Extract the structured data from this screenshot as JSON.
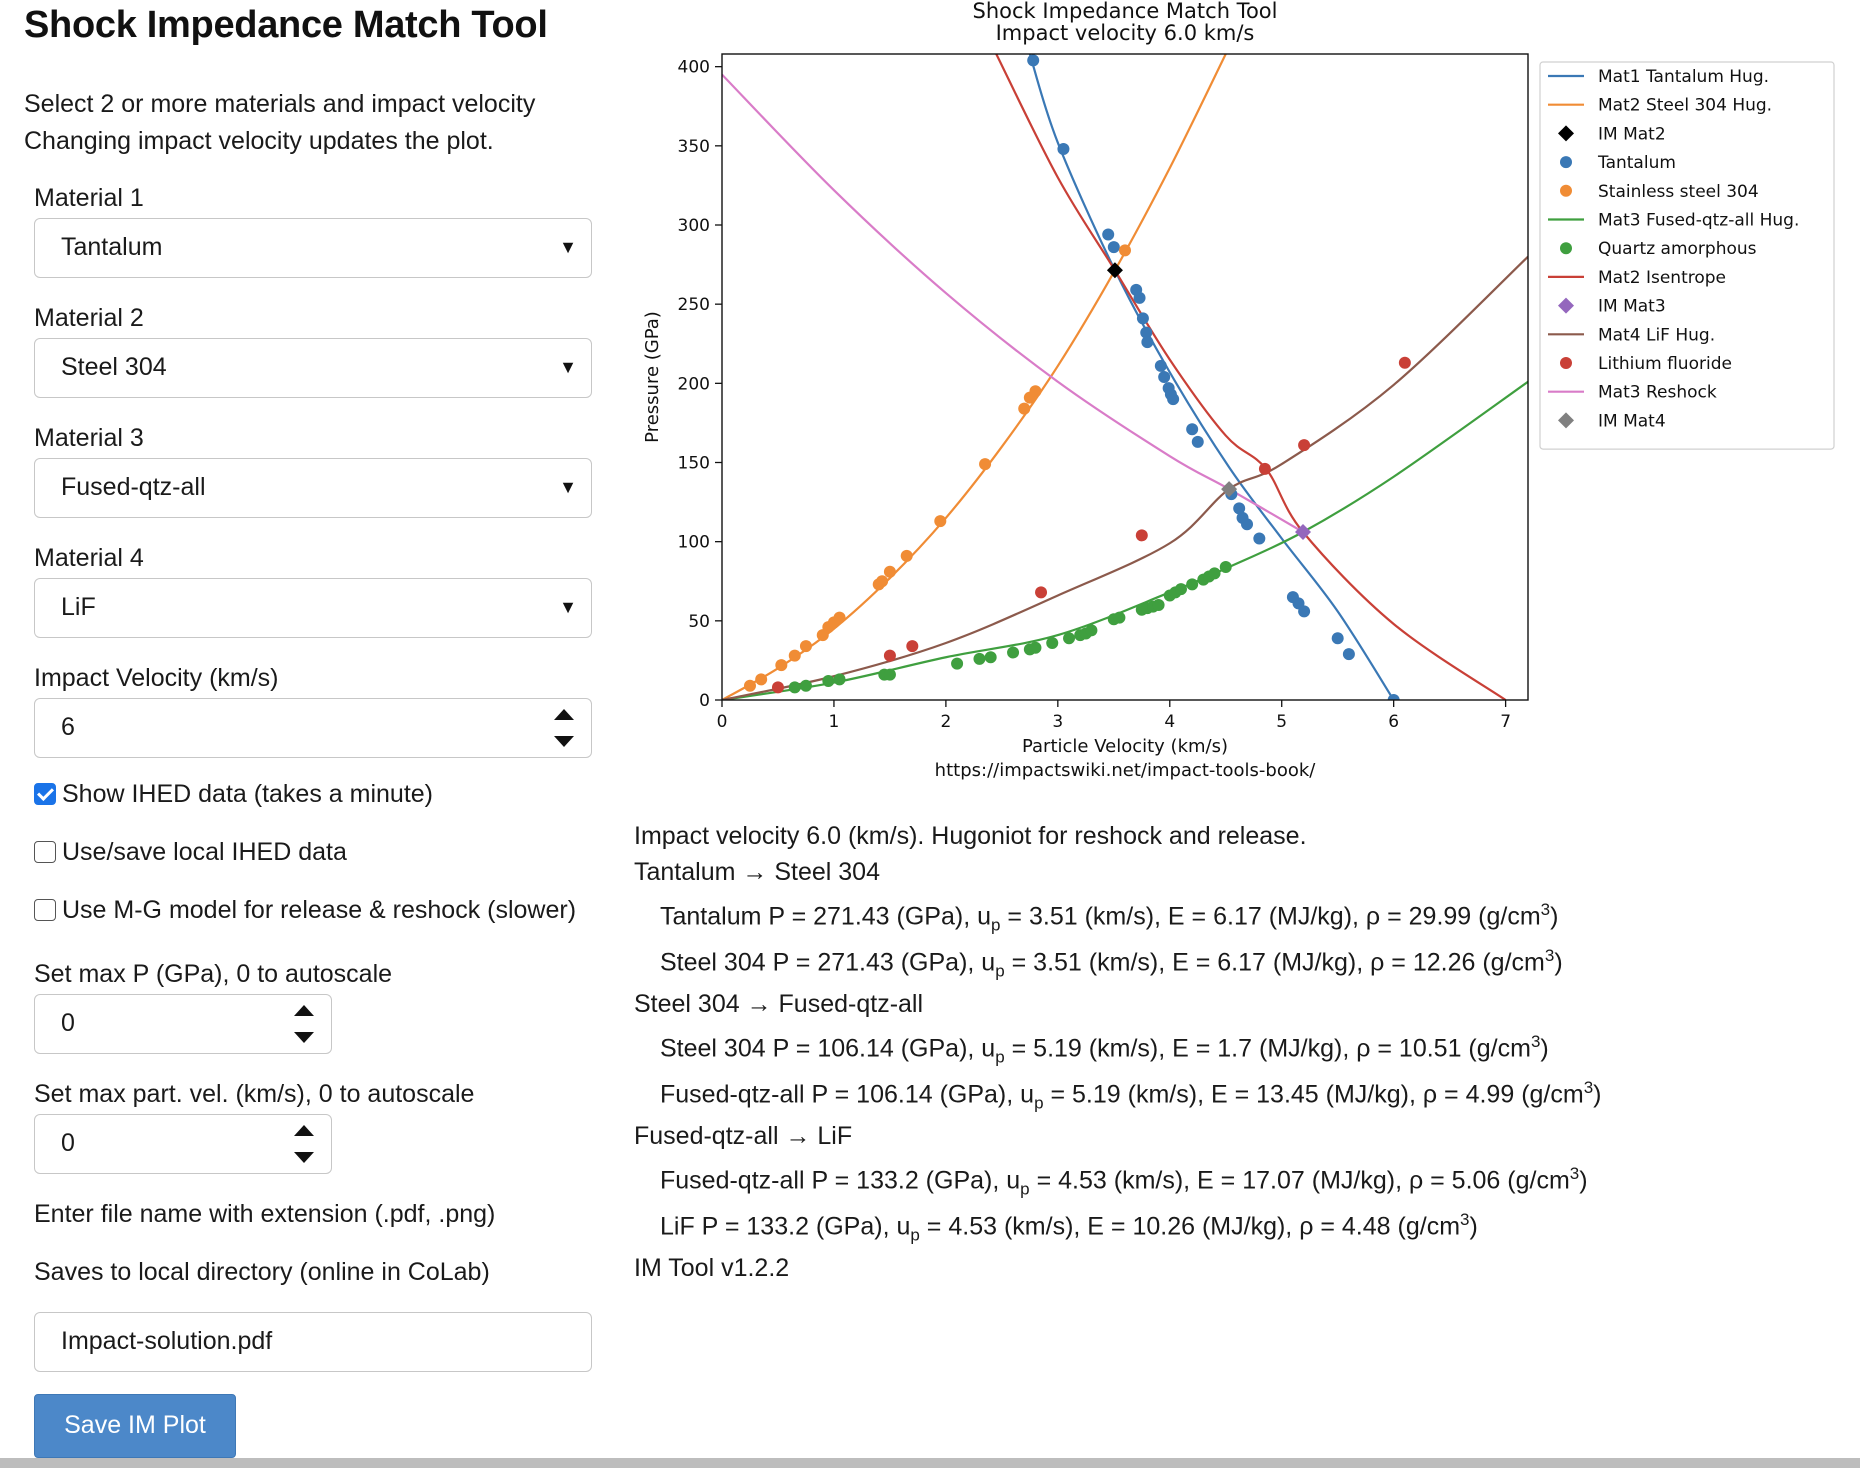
{
  "app": {
    "title": "Shock Impedance Match Tool"
  },
  "intro": [
    "Select 2 or more materials and impact velocity",
    "Changing impact velocity updates the plot."
  ],
  "materials": [
    {
      "label": "Material 1",
      "value": "Tantalum"
    },
    {
      "label": "Material 2",
      "value": "Steel 304"
    },
    {
      "label": "Material 3",
      "value": "Fused-qtz-all"
    },
    {
      "label": "Material 4",
      "value": "LiF"
    }
  ],
  "impact_velocity": {
    "label": "Impact Velocity (km/s)",
    "value": "6"
  },
  "checkboxes": [
    {
      "label": "Show IHED data (takes a minute)",
      "checked": true
    },
    {
      "label": "Use/save local IHED data",
      "checked": false
    },
    {
      "label": "Use M-G model for release & reshock (slower)",
      "checked": false
    }
  ],
  "max_p": {
    "label": "Set max P (GPa), 0 to autoscale",
    "value": "0"
  },
  "max_up": {
    "label": "Set max part. vel. (km/s), 0 to autoscale",
    "value": "0"
  },
  "file": {
    "hint1": "Enter file name with extension (.pdf, .png)",
    "hint2": "Saves to local directory (online in CoLab)",
    "value": "Impact-solution.pdf"
  },
  "save_button": "Save IM Plot",
  "results": {
    "header": "Impact velocity 6.0 (km/s). Hugoniot for reshock and release.",
    "groups": [
      {
        "title": "Tantalum → Steel 304",
        "rows": [
          {
            "name": "Tantalum",
            "P": "271.43",
            "up": "3.51",
            "E": "6.17",
            "rho": "29.99"
          },
          {
            "name": "Steel 304",
            "P": "271.43",
            "up": "3.51",
            "E": "6.17",
            "rho": "12.26"
          }
        ]
      },
      {
        "title": "Steel 304 → Fused-qtz-all",
        "rows": [
          {
            "name": "Steel 304",
            "P": "106.14",
            "up": "5.19",
            "E": "1.7",
            "rho": "10.51"
          },
          {
            "name": "Fused-qtz-all",
            "P": "106.14",
            "up": "5.19",
            "E": "13.45",
            "rho": "4.99"
          }
        ]
      },
      {
        "title": "Fused-qtz-all → LiF",
        "rows": [
          {
            "name": "Fused-qtz-all",
            "P": "133.2",
            "up": "4.53",
            "E": "17.07",
            "rho": "5.06"
          },
          {
            "name": "LiF",
            "P": "133.2",
            "up": "4.53",
            "E": "10.26",
            "rho": "4.48"
          }
        ]
      }
    ],
    "version": "IM Tool v1.2.2"
  },
  "chart_data": {
    "type": "line",
    "title": "Shock Impedance Match Tool",
    "subtitle": "Impact velocity 6.0 km/s",
    "xlabel": "Particle Velocity (km/s)",
    "ylabel": "Pressure (GPa)",
    "footer": "https://impactswiki.net/impact-tools-book/",
    "xlim": [
      0,
      7.2
    ],
    "ylim": [
      0,
      408
    ],
    "xticks": [
      0,
      1,
      2,
      3,
      4,
      5,
      6,
      7
    ],
    "yticks": [
      0,
      50,
      100,
      150,
      200,
      250,
      300,
      350,
      400
    ],
    "grid": false,
    "legend_position": "right",
    "series": [
      {
        "name": "Mat1 Tantalum Hug.",
        "kind": "line",
        "color": "#3a78b5",
        "points": [
          [
            2.75,
            408
          ],
          [
            3.0,
            352
          ],
          [
            3.51,
            271.4
          ],
          [
            4.0,
            207
          ],
          [
            4.53,
            147
          ],
          [
            5.0,
            102
          ],
          [
            5.5,
            56
          ],
          [
            6.0,
            0
          ]
        ]
      },
      {
        "name": "Mat2 Steel 304 Hug.",
        "kind": "line",
        "color": "#f08c35",
        "points": [
          [
            0,
            0
          ],
          [
            0.5,
            20
          ],
          [
            1.0,
            45
          ],
          [
            1.5,
            77
          ],
          [
            2.0,
            115
          ],
          [
            2.5,
            160
          ],
          [
            3.0,
            211
          ],
          [
            3.51,
            271.4
          ],
          [
            4.0,
            336
          ],
          [
            4.5,
            408
          ]
        ]
      },
      {
        "name": "IM Mat2",
        "kind": "marker",
        "marker": "diamond",
        "color": "#000000",
        "points": [
          [
            3.51,
            271.43
          ]
        ]
      },
      {
        "name": "Tantalum",
        "kind": "scatter",
        "color": "#3a78b5",
        "points": [
          [
            2.78,
            404
          ],
          [
            3.05,
            348
          ],
          [
            3.45,
            294
          ],
          [
            3.5,
            286
          ],
          [
            3.7,
            259
          ],
          [
            3.73,
            254
          ],
          [
            3.76,
            241
          ],
          [
            3.79,
            232
          ],
          [
            3.8,
            226
          ],
          [
            3.92,
            211
          ],
          [
            3.95,
            204
          ],
          [
            3.99,
            197
          ],
          [
            4.01,
            193
          ],
          [
            4.03,
            190
          ],
          [
            4.2,
            171
          ],
          [
            4.25,
            163
          ],
          [
            4.55,
            130
          ],
          [
            4.62,
            121
          ],
          [
            4.65,
            115
          ],
          [
            4.69,
            111
          ],
          [
            4.8,
            102
          ],
          [
            5.1,
            65
          ],
          [
            5.15,
            61
          ],
          [
            5.2,
            56
          ],
          [
            5.5,
            39
          ],
          [
            5.6,
            29
          ],
          [
            6.0,
            0
          ]
        ]
      },
      {
        "name": "Stainless steel 304",
        "kind": "scatter",
        "color": "#f08c35",
        "points": [
          [
            0.25,
            9
          ],
          [
            0.35,
            13
          ],
          [
            0.53,
            22
          ],
          [
            0.65,
            28
          ],
          [
            0.75,
            34
          ],
          [
            0.9,
            41
          ],
          [
            0.95,
            46
          ],
          [
            1.0,
            49
          ],
          [
            1.05,
            52
          ],
          [
            1.4,
            73
          ],
          [
            1.43,
            75
          ],
          [
            1.5,
            81
          ],
          [
            1.65,
            91
          ],
          [
            1.95,
            113
          ],
          [
            2.35,
            149
          ],
          [
            2.7,
            184
          ],
          [
            2.75,
            191
          ],
          [
            2.8,
            195
          ],
          [
            3.6,
            284
          ]
        ]
      },
      {
        "name": "Mat3 Fused-qtz-all Hug.",
        "kind": "line",
        "color": "#3f9f3f",
        "points": [
          [
            0,
            0
          ],
          [
            1.0,
            11
          ],
          [
            2.0,
            27
          ],
          [
            3.0,
            41
          ],
          [
            4.0,
            68
          ],
          [
            4.53,
            84
          ],
          [
            5.19,
            106.1
          ],
          [
            6.0,
            141
          ],
          [
            7.2,
            201
          ]
        ]
      },
      {
        "name": "Quartz amorphous",
        "kind": "scatter",
        "color": "#3f9f3f",
        "points": [
          [
            0.65,
            8
          ],
          [
            0.75,
            9
          ],
          [
            0.95,
            12
          ],
          [
            1.05,
            13
          ],
          [
            1.45,
            16
          ],
          [
            1.5,
            16
          ],
          [
            2.1,
            23
          ],
          [
            2.3,
            26
          ],
          [
            2.4,
            27
          ],
          [
            2.6,
            30
          ],
          [
            2.75,
            32
          ],
          [
            2.8,
            33
          ],
          [
            2.95,
            36
          ],
          [
            3.1,
            39
          ],
          [
            3.2,
            41
          ],
          [
            3.25,
            42
          ],
          [
            3.3,
            44
          ],
          [
            3.5,
            51
          ],
          [
            3.55,
            52
          ],
          [
            3.75,
            57
          ],
          [
            3.8,
            58
          ],
          [
            3.85,
            59
          ],
          [
            3.9,
            60
          ],
          [
            4.0,
            66
          ],
          [
            4.05,
            68
          ],
          [
            4.1,
            70
          ],
          [
            4.2,
            73
          ],
          [
            4.3,
            76
          ],
          [
            4.35,
            78
          ],
          [
            4.4,
            80
          ],
          [
            4.5,
            84
          ]
        ]
      },
      {
        "name": "Mat2 Isentrope",
        "kind": "line",
        "color": "#c94037",
        "points": [
          [
            2.45,
            408
          ],
          [
            3.0,
            330
          ],
          [
            3.51,
            271.4
          ],
          [
            4.0,
            215
          ],
          [
            4.5,
            167
          ],
          [
            4.86,
            146
          ],
          [
            5.19,
            106.1
          ],
          [
            6.0,
            48
          ],
          [
            7.0,
            0
          ]
        ]
      },
      {
        "name": "IM Mat3",
        "kind": "marker",
        "marker": "diamond",
        "color": "#9467bd",
        "points": [
          [
            5.19,
            106.14
          ]
        ]
      },
      {
        "name": "Mat4 LiF Hug.",
        "kind": "line",
        "color": "#8c5a4c",
        "points": [
          [
            0,
            0
          ],
          [
            1.0,
            15
          ],
          [
            2.0,
            36
          ],
          [
            3.0,
            66
          ],
          [
            4.0,
            99
          ],
          [
            4.53,
            133.2
          ],
          [
            5.0,
            149
          ],
          [
            6.0,
            199
          ],
          [
            7.2,
            280
          ]
        ]
      },
      {
        "name": "Lithium fluoride",
        "kind": "scatter",
        "color": "#c94037",
        "points": [
          [
            0.5,
            8
          ],
          [
            1.5,
            28
          ],
          [
            1.7,
            34
          ],
          [
            2.85,
            68
          ],
          [
            3.75,
            104
          ],
          [
            4.85,
            146
          ],
          [
            5.2,
            161
          ],
          [
            6.1,
            213
          ]
        ]
      },
      {
        "name": "Mat3 Reshock",
        "kind": "line",
        "color": "#d97cc8",
        "points": [
          [
            0,
            395
          ],
          [
            1.0,
            322
          ],
          [
            2.0,
            257
          ],
          [
            3.0,
            201
          ],
          [
            4.0,
            154
          ],
          [
            4.53,
            133.2
          ],
          [
            5.19,
            106.1
          ]
        ]
      },
      {
        "name": "IM Mat4",
        "kind": "marker",
        "marker": "diamond",
        "color": "#808080",
        "points": [
          [
            4.53,
            133.2
          ]
        ]
      }
    ]
  }
}
